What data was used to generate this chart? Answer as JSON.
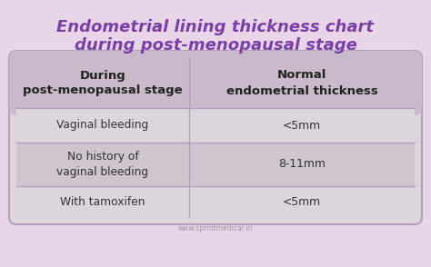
{
  "title_line1": "Endometrial lining thickness chart",
  "title_line2": "during post-menopausal stage",
  "title_color": "#7b3fa8",
  "background_color": "#e8d5e8",
  "header_bg_color": "#c9bac9",
  "row_odd_bg": "#ddd5dd",
  "row_even_bg": "#cfc5cf",
  "col1_header": "During\npost-menopausal stage",
  "col2_header": "Normal\nendometrial thickness",
  "rows": [
    [
      "Vaginal bleeding",
      "<5mm"
    ],
    [
      "No history of\nvaginal bleeding",
      "8-11mm"
    ],
    [
      "With tamoxifen",
      "<5mm"
    ]
  ],
  "header_text_color": "#222222",
  "row_text_color": "#333333",
  "footer_text": "www.sprintmedical.in",
  "footer_color": "#999999",
  "table_border_color": "#b0a0b8",
  "divider_color": "#b0a0b8"
}
